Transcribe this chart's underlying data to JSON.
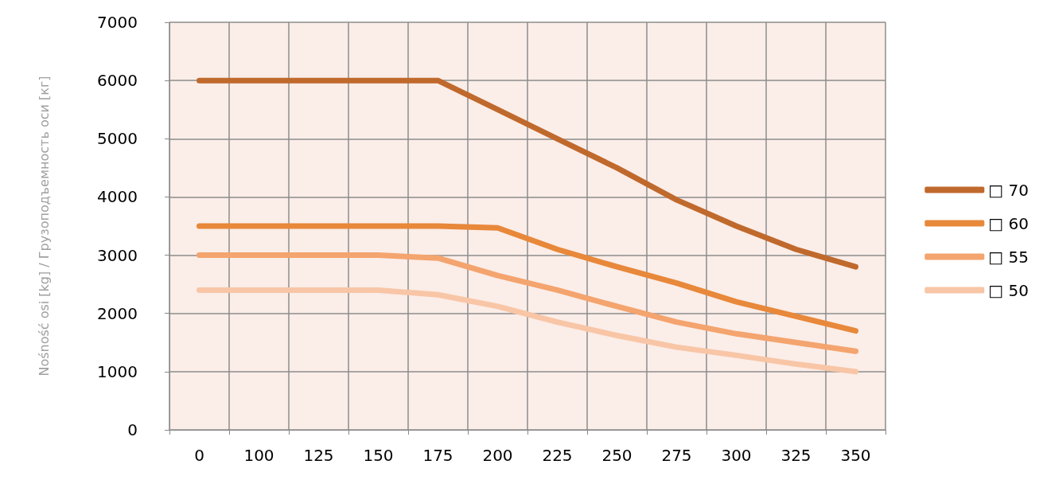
{
  "chart_data": {
    "type": "line",
    "ylabel": "Nośność osi [kg] / Грузоподъемность оси [кг]",
    "categories": [
      "0",
      "100",
      "125",
      "150",
      "175",
      "200",
      "225",
      "250",
      "275",
      "300",
      "325",
      "350"
    ],
    "series": [
      {
        "name": "□ 70",
        "color": "#c0692d",
        "values": [
          6000,
          6000,
          6000,
          6000,
          6000,
          5500,
          5000,
          4500,
          3950,
          3500,
          3100,
          2800
        ]
      },
      {
        "name": "□ 60",
        "color": "#e8883a",
        "values": [
          3500,
          3500,
          3500,
          3500,
          3500,
          3470,
          3100,
          2800,
          2520,
          2200,
          1950,
          1700
        ]
      },
      {
        "name": "□ 55",
        "color": "#f4a46e",
        "values": [
          3000,
          3000,
          3000,
          3000,
          2950,
          2650,
          2400,
          2120,
          1850,
          1650,
          1500,
          1350
        ]
      },
      {
        "name": "□ 50",
        "color": "#f8c6a6",
        "values": [
          2400,
          2400,
          2400,
          2400,
          2320,
          2120,
          1850,
          1620,
          1420,
          1280,
          1130,
          1000
        ]
      }
    ],
    "ylim": [
      0,
      7000
    ],
    "yticks": [
      0,
      1000,
      2000,
      3000,
      4000,
      5000,
      6000,
      7000
    ],
    "grid": true,
    "legend": "right",
    "marker": "none",
    "line_style": "solid"
  }
}
